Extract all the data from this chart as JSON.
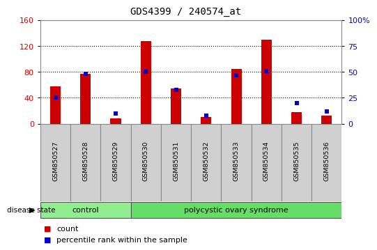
{
  "title": "GDS4399 / 240574_at",
  "samples": [
    "GSM850527",
    "GSM850528",
    "GSM850529",
    "GSM850530",
    "GSM850531",
    "GSM850532",
    "GSM850533",
    "GSM850534",
    "GSM850535",
    "GSM850536"
  ],
  "count_values": [
    58,
    77,
    8,
    128,
    55,
    10,
    85,
    130,
    18,
    12
  ],
  "percentile_values": [
    25,
    48,
    10,
    50,
    33,
    8,
    47,
    51,
    20,
    12
  ],
  "groups": [
    {
      "label": "control",
      "indices": [
        0,
        1,
        2
      ],
      "color": "#90ee90"
    },
    {
      "label": "polycystic ovary syndrome",
      "indices": [
        3,
        4,
        5,
        6,
        7,
        8,
        9
      ],
      "color": "#66dd66"
    }
  ],
  "left_ylim": [
    0,
    160
  ],
  "right_ylim": [
    0,
    100
  ],
  "left_yticks": [
    0,
    40,
    80,
    120,
    160
  ],
  "right_yticks": [
    0,
    25,
    50,
    75,
    100
  ],
  "right_yticklabels": [
    "0",
    "25",
    "50",
    "75",
    "100%"
  ],
  "left_ycolor": "#cc0000",
  "right_ycolor": "#0000cc",
  "bar_color": "#cc0000",
  "marker_color": "#0000cc",
  "bg_color": "#ffffff",
  "grid_color": "#000000",
  "disease_state_label": "disease state",
  "legend_count": "count",
  "legend_percentile": "percentile rank within the sample",
  "cell_color": "#d0d0d0",
  "cell_edge_color": "#888888"
}
